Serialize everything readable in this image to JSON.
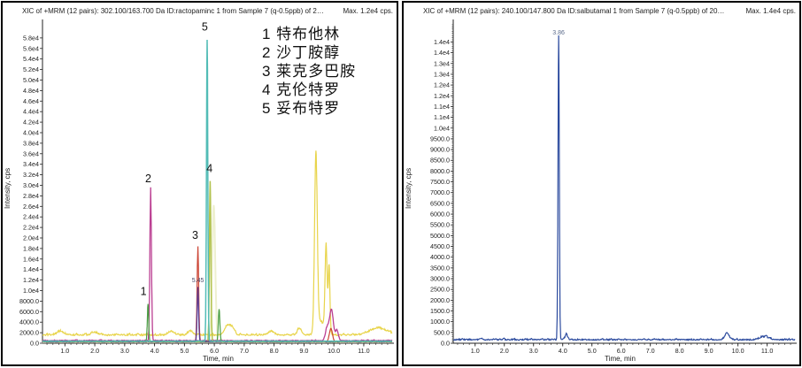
{
  "panels": [
    {
      "title": "XIC of +MRM (12 pairs): 302.100/163.700 Da ID:ractopaminc 1 from Sample 7 (q-0.5ppb) of 2…",
      "max_label": "Max. 1.2e4 cps.",
      "ylabel": "Intensity, cps",
      "xlabel": "Time, min"
    },
    {
      "title": "XIC of +MRM (12 pairs): 240.100/147.800 Da ID:salbutamal 1 from Sample 7 (q-0.5ppb) of 20…",
      "max_label": "Max. 1.4e4 cps.",
      "ylabel": "Intensity, cps",
      "xlabel": "Time, min"
    }
  ],
  "legend": {
    "items": [
      "1 特布他林",
      "2 沙丁胺醇",
      "3 莱克多巴胺",
      "4 克伦特罗",
      "5 妥布特罗"
    ]
  },
  "chart_data": [
    {
      "type": "line",
      "title": "XIC of +MRM (12 pairs): 302.100/163.700 Da ID:ractopaminc",
      "xlabel": "Time, min",
      "ylabel": "Intensity, cps",
      "xlim": [
        0.25,
        11.95
      ],
      "ylim": [
        0,
        60500
      ],
      "x_tick_values": [
        1,
        2,
        3,
        4,
        5,
        6,
        7,
        8,
        9,
        10,
        11
      ],
      "x_tick_labels": [
        "1.0",
        "2.0",
        "3.0",
        "4.0",
        "5.0",
        "6.0",
        "7.0",
        "8.0",
        "9.0",
        "10.0",
        "11.0"
      ],
      "x_minor_start": 0.4,
      "x_minor_step": 0.2,
      "y_tick_step": 2000,
      "y_minor_step": 0,
      "y_tick_labels": [
        "0.0",
        "2000.0",
        "4000.0",
        "6000.0",
        "8000.0",
        "1.0e4",
        "1.2e4",
        "1.4e4",
        "1.6e4",
        "1.8e4",
        "2.0e4",
        "2.2e4",
        "2.4e4",
        "2.6e4",
        "2.8e4",
        "3.0e4",
        "3.2e4",
        "3.4e4",
        "3.6e4",
        "3.8e4",
        "4.0e4",
        "4.2e4",
        "4.4e4",
        "4.6e4",
        "4.8e4",
        "5.0e4",
        "5.2e4",
        "5.4e4",
        "5.6e4",
        "5.8e4"
      ],
      "series": [
        {
          "name": "background-pale",
          "color": "#eef0d0",
          "width": 2,
          "base": 220,
          "noise": 90,
          "peaks": [
            [
              5.98,
              26000,
              0.05
            ]
          ]
        },
        {
          "name": "yellow-trace",
          "color": "#e8d44a",
          "width": 1.2,
          "base": 1450,
          "noise": 560,
          "peaks": [
            [
              0.85,
              700,
              0.12
            ],
            [
              2.0,
              500,
              0.1
            ],
            [
              4.55,
              700,
              0.1
            ],
            [
              5.2,
              800,
              0.08
            ],
            [
              6.45,
              1900,
              0.1
            ],
            [
              6.62,
              1100,
              0.07
            ],
            [
              7.9,
              700,
              0.1
            ],
            [
              8.85,
              1300,
              0.07
            ],
            [
              9.4,
              33800,
              0.045
            ],
            [
              9.55,
              2600,
              0.12
            ],
            [
              9.74,
              16500,
              0.035
            ],
            [
              9.84,
              13000,
              0.028
            ],
            [
              11.5,
              1300,
              0.3
            ]
          ]
        },
        {
          "name": "salbutamol-magenta",
          "color": "#bb3f92",
          "width": 1.3,
          "base": 430,
          "noise": 280,
          "peaks": [
            [
              3.87,
              29000,
              0.026
            ],
            [
              9.78,
              2500,
              0.06
            ],
            [
              9.92,
              5800,
              0.06
            ],
            [
              10.1,
              2000,
              0.05
            ]
          ]
        },
        {
          "name": "ractopamine-red",
          "color": "#cc4636",
          "width": 1.2,
          "base": 280,
          "noise": 160,
          "peaks": [
            [
              5.45,
              18000,
              0.026
            ],
            [
              9.9,
              2500,
              0.05
            ]
          ]
        },
        {
          "name": "terbutaline-green",
          "color": "#4a9e44",
          "width": 1.2,
          "base": 260,
          "noise": 140,
          "peaks": [
            [
              3.78,
              7200,
              0.022
            ],
            [
              6.16,
              6200,
              0.026
            ]
          ]
        },
        {
          "name": "clenbuterol-olive",
          "color": "#b2c24e",
          "width": 1.5,
          "base": 300,
          "noise": 140,
          "peaks": [
            [
              5.86,
              30500,
              0.024
            ]
          ]
        },
        {
          "name": "purple-trace",
          "color": "#5c3f96",
          "width": 1.3,
          "base": 300,
          "noise": 150,
          "peaks": [
            [
              5.45,
              10300,
              0.024
            ]
          ]
        },
        {
          "name": "tulobuterol-cyan",
          "color": "#52bcb6",
          "width": 1.5,
          "base": 380,
          "noise": 90,
          "peaks": [
            [
              5.76,
              57200,
              0.022
            ]
          ]
        }
      ],
      "annotations": [
        {
          "text": "5.45",
          "x": 5.45,
          "y": 11600,
          "color": "#4a4a6a",
          "size": 7
        }
      ],
      "peak_labels": [
        {
          "text": "1",
          "x": 3.63,
          "y": 9200
        },
        {
          "text": "2",
          "x": 3.79,
          "y": 30600
        },
        {
          "text": "3",
          "x": 5.36,
          "y": 19800
        },
        {
          "text": "4",
          "x": 5.84,
          "y": 32500
        },
        {
          "text": "5",
          "x": 5.68,
          "y": 59400
        }
      ],
      "legend_items": [
        "1 特布他林",
        "2 沙丁胺醇",
        "3 莱克多巴胺",
        "4 克伦特罗",
        "5 妥布特罗"
      ]
    },
    {
      "type": "line",
      "title": "XIC of +MRM (12 pairs): 240.100/147.800 Da ID:salbutamal",
      "xlabel": "Time, min",
      "ylabel": "Intensity, cps",
      "xlim": [
        0.25,
        11.95
      ],
      "ylim": [
        0,
        14800
      ],
      "x_tick_values": [
        1,
        2,
        3,
        4,
        5,
        6,
        7,
        8,
        9,
        10,
        11
      ],
      "x_tick_labels": [
        "1.0",
        "2.0",
        "3.0",
        "4.0",
        "5.0",
        "6.0",
        "7.0",
        "8.0",
        "9.0",
        "10.0",
        "11.0"
      ],
      "x_minor_start": 0.4,
      "x_minor_step": 0.2,
      "y_tick_step": 500,
      "y_minor_step": 100,
      "y_tick_labels": [
        "0.0",
        "500.0",
        "1000.0",
        "1500.0",
        "2000.0",
        "2500.0",
        "3000.0",
        "3500.0",
        "4000.0",
        "4500.0",
        "5000.0",
        "5500.0",
        "6000.0",
        "6500.0",
        "7000.0",
        "7500.0",
        "8000.0",
        "8500.0",
        "9000.0",
        "9500.0",
        "1.0e4",
        "1.1e4",
        "1.1e4",
        "1.2e4",
        "1.2e4",
        "1.3e4",
        "1.3e4",
        "1.4e4",
        "1.4e4"
      ],
      "series": [
        {
          "name": "salbutamal-blue",
          "color": "#2b4a9e",
          "width": 1.2,
          "base": 140,
          "noise": 110,
          "peaks": [
            [
              3.86,
              14100,
              0.022
            ],
            [
              4.12,
              260,
              0.04
            ],
            [
              9.62,
              320,
              0.07
            ],
            [
              10.9,
              150,
              0.15
            ]
          ]
        }
      ],
      "annotations": [
        {
          "text": "3.86",
          "x": 3.86,
          "y": 14350,
          "color": "#5a6a8a",
          "size": 7
        }
      ],
      "peak_labels": []
    }
  ]
}
